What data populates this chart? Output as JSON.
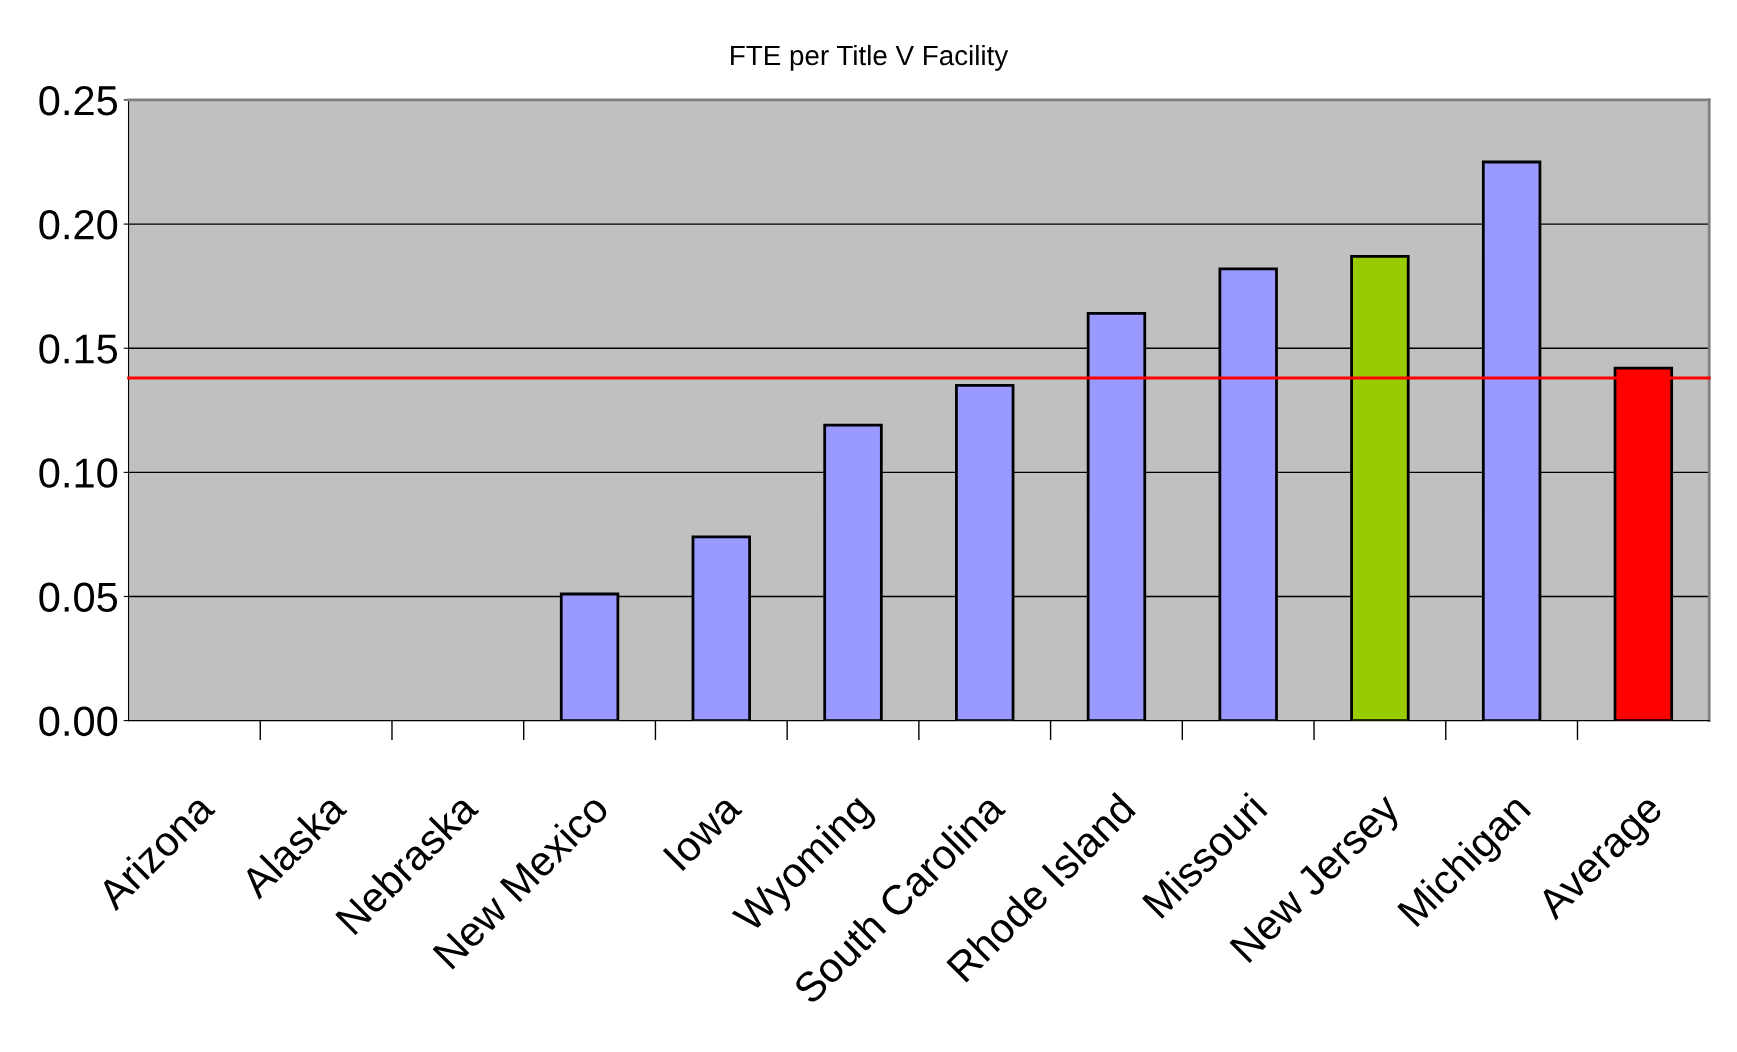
{
  "chart_data": {
    "type": "bar",
    "title": "FTE per Title V Facility",
    "categories": [
      "Arizona",
      "Alaska",
      "Nebraska",
      "New Mexico",
      "Iowa",
      "Wyoming",
      "South Carolina",
      "Rhode Island",
      "Missouri",
      "New Jersey",
      "Michigan",
      "Average"
    ],
    "values": [
      null,
      null,
      null,
      0.051,
      0.074,
      0.119,
      0.135,
      0.164,
      0.182,
      0.187,
      0.225,
      0.142
    ],
    "colors": [
      "#9999ff",
      "#9999ff",
      "#9999ff",
      "#9999ff",
      "#9999ff",
      "#9999ff",
      "#9999ff",
      "#9999ff",
      "#9999ff",
      "#99cc00",
      "#9999ff",
      "#ff0000"
    ],
    "ylim": [
      0,
      0.25
    ],
    "yticks": [
      {
        "value": 0,
        "label": "0.00"
      },
      {
        "value": 0.05,
        "label": "0.05"
      },
      {
        "value": 0.1,
        "label": "0.10"
      },
      {
        "value": 0.15,
        "label": "0.15"
      },
      {
        "value": 0.2,
        "label": "0.20"
      },
      {
        "value": 0.25,
        "label": "0.25"
      }
    ],
    "grid": "y",
    "ref_lines": [
      {
        "axis": "y",
        "value": 0.138,
        "color": "#ff0000"
      }
    ]
  }
}
